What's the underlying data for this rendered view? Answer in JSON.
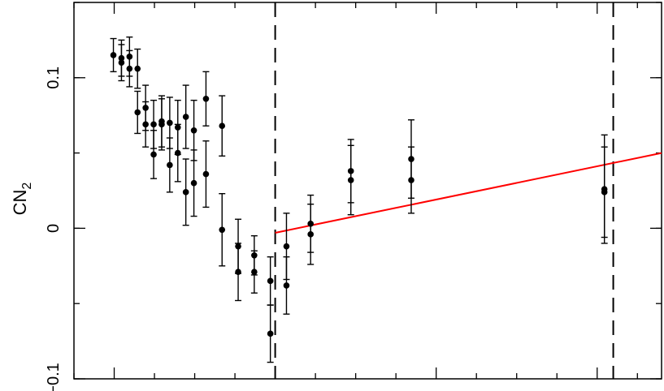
{
  "chart_data": {
    "type": "scatter",
    "title": "",
    "xlabel": "",
    "ylabel": "CN",
    "ylabel_subscript": "2",
    "xlim": [
      0,
      730
    ],
    "ylim": [
      -0.1,
      0.15
    ],
    "yticks": [
      {
        "value": -0.1,
        "label": "−0.1"
      },
      {
        "value": 0,
        "label": "0"
      },
      {
        "value": 0.1,
        "label": "0.1"
      }
    ],
    "xticks_major": [
      50,
      250,
      450,
      650
    ],
    "xticks_minor": [
      0,
      100,
      150,
      200,
      300,
      350,
      400,
      500,
      550,
      600,
      700
    ],
    "grid": false,
    "colors": {
      "points": "#000000",
      "fit": "#ff0000",
      "lines": "#000000"
    },
    "points": [
      {
        "x": 49,
        "y": 0.115,
        "err": 0.011
      },
      {
        "x": 59,
        "y": 0.113,
        "err": 0.012
      },
      {
        "x": 59,
        "y": 0.11,
        "err": 0.012
      },
      {
        "x": 69,
        "y": 0.114,
        "err": 0.013
      },
      {
        "x": 69,
        "y": 0.106,
        "err": 0.012
      },
      {
        "x": 79,
        "y": 0.106,
        "err": 0.013
      },
      {
        "x": 79,
        "y": 0.077,
        "err": 0.014
      },
      {
        "x": 89,
        "y": 0.08,
        "err": 0.015
      },
      {
        "x": 89,
        "y": 0.069,
        "err": 0.015
      },
      {
        "x": 99,
        "y": 0.069,
        "err": 0.016
      },
      {
        "x": 99,
        "y": 0.049,
        "err": 0.016
      },
      {
        "x": 109,
        "y": 0.071,
        "err": 0.017
      },
      {
        "x": 109,
        "y": 0.069,
        "err": 0.017
      },
      {
        "x": 119,
        "y": 0.07,
        "err": 0.017
      },
      {
        "x": 119,
        "y": 0.042,
        "err": 0.018
      },
      {
        "x": 129,
        "y": 0.067,
        "err": 0.018
      },
      {
        "x": 129,
        "y": 0.05,
        "err": 0.019
      },
      {
        "x": 139,
        "y": 0.074,
        "err": 0.021
      },
      {
        "x": 139,
        "y": 0.024,
        "err": 0.022
      },
      {
        "x": 149,
        "y": 0.065,
        "err": 0.02
      },
      {
        "x": 149,
        "y": 0.03,
        "err": 0.022
      },
      {
        "x": 164,
        "y": 0.086,
        "err": 0.018
      },
      {
        "x": 164,
        "y": 0.036,
        "err": 0.022
      },
      {
        "x": 184,
        "y": 0.068,
        "err": 0.02
      },
      {
        "x": 184,
        "y": -0.001,
        "err": 0.024
      },
      {
        "x": 204,
        "y": -0.012,
        "err": 0.018
      },
      {
        "x": 204,
        "y": -0.029,
        "err": 0.019
      },
      {
        "x": 224,
        "y": -0.018,
        "err": 0.013
      },
      {
        "x": 224,
        "y": -0.029,
        "err": 0.014
      },
      {
        "x": 244,
        "y": -0.035,
        "err": 0.016
      },
      {
        "x": 244,
        "y": -0.07,
        "err": 0.019
      },
      {
        "x": 264,
        "y": -0.012,
        "err": 0.022
      },
      {
        "x": 264,
        "y": -0.038,
        "err": 0.019
      },
      {
        "x": 294,
        "y": 0.003,
        "err": 0.019
      },
      {
        "x": 294,
        "y": -0.004,
        "err": 0.02
      },
      {
        "x": 344,
        "y": 0.038,
        "err": 0.021
      },
      {
        "x": 344,
        "y": 0.032,
        "err": 0.023
      },
      {
        "x": 419,
        "y": 0.046,
        "err": 0.026
      },
      {
        "x": 419,
        "y": 0.032,
        "err": 0.022
      },
      {
        "x": 659,
        "y": 0.026,
        "err": 0.036
      },
      {
        "x": 659,
        "y": 0.024,
        "err": 0.03
      }
    ],
    "fit_line": {
      "x": [
        250,
        730
      ],
      "y": [
        -0.003,
        0.05
      ]
    },
    "vertical_dashed_lines": [
      250,
      670
    ]
  }
}
